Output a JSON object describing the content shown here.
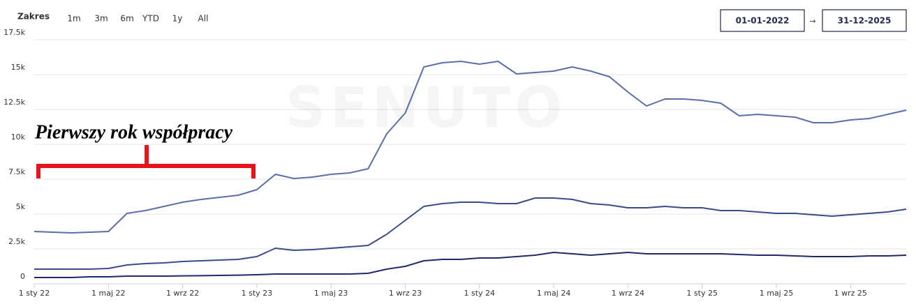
{
  "range_selector": {
    "label": "Zakres",
    "buttons": [
      "1m",
      "3m",
      "6m",
      "YTD",
      "1y",
      "All"
    ]
  },
  "date_range": {
    "from": "01-01-2022",
    "separator": "→",
    "to": "31-12-2025"
  },
  "chart_data": {
    "type": "line",
    "watermark": "SENUTO",
    "annotation": "Pierwszy rok współpracy",
    "categories": [
      "1 sty 22",
      null,
      null,
      null,
      "1 maj 22",
      null,
      null,
      null,
      "1 wrz 22",
      null,
      null,
      null,
      "1 sty 23",
      null,
      null,
      null,
      "1 maj 23",
      null,
      null,
      null,
      "1 wrz 23",
      null,
      null,
      null,
      "1 sty 24",
      null,
      null,
      null,
      "1 maj 24",
      null,
      null,
      null,
      "1 wrz 24",
      null,
      null,
      null,
      "1 sty 25",
      null,
      null,
      null,
      "1 maj 25",
      null,
      null,
      null,
      "1 wrz 25",
      null,
      null,
      null
    ],
    "series": [
      {
        "color": "#5b6eab",
        "values": [
          3500,
          3450,
          3400,
          3450,
          3500,
          4800,
          5000,
          5300,
          5600,
          5800,
          5950,
          6100,
          6500,
          7600,
          7300,
          7400,
          7600,
          7700,
          8000,
          10500,
          12000,
          15300,
          15600,
          15700,
          15500,
          15700,
          14800,
          14900,
          15000,
          15300,
          15000,
          14600,
          13500,
          12500,
          13000,
          13000,
          12900,
          12700,
          11800,
          11900,
          11800,
          11700,
          11300,
          11300,
          11500,
          11600,
          11900,
          12200
        ]
      },
      {
        "color": "#3b4a8c",
        "values": [
          800,
          800,
          800,
          800,
          850,
          1100,
          1200,
          1250,
          1350,
          1400,
          1450,
          1500,
          1700,
          2300,
          2150,
          2200,
          2300,
          2400,
          2500,
          3300,
          4300,
          5300,
          5500,
          5600,
          5600,
          5500,
          5500,
          5900,
          5900,
          5800,
          5500,
          5400,
          5200,
          5200,
          5300,
          5200,
          5200,
          5000,
          5000,
          4900,
          4800,
          4800,
          4700,
          4600,
          4700,
          4800,
          4900,
          5100
        ]
      },
      {
        "color": "#1e2a6b",
        "values": [
          200,
          200,
          200,
          250,
          250,
          300,
          300,
          300,
          320,
          330,
          350,
          370,
          400,
          450,
          450,
          450,
          450,
          450,
          500,
          800,
          1000,
          1400,
          1500,
          1500,
          1600,
          1600,
          1700,
          1800,
          2000,
          1900,
          1800,
          1900,
          2000,
          1900,
          1900,
          1900,
          1900,
          1900,
          1850,
          1800,
          1800,
          1750,
          1700,
          1700,
          1700,
          1750,
          1750,
          1800
        ]
      }
    ],
    "ylim": [
      0,
      17500
    ],
    "yticks": [
      0,
      {
        "value": 2500,
        "label": "2.5k"
      },
      {
        "value": 5000,
        "label": "5k"
      },
      {
        "value": 7500,
        "label": "7.5k"
      },
      {
        "value": 10000,
        "label": "10k"
      },
      {
        "value": 12500,
        "label": "12.5k"
      },
      {
        "value": 15000,
        "label": "15k"
      },
      {
        "value": 17500,
        "label": "17.5k"
      }
    ],
    "grid": true
  }
}
